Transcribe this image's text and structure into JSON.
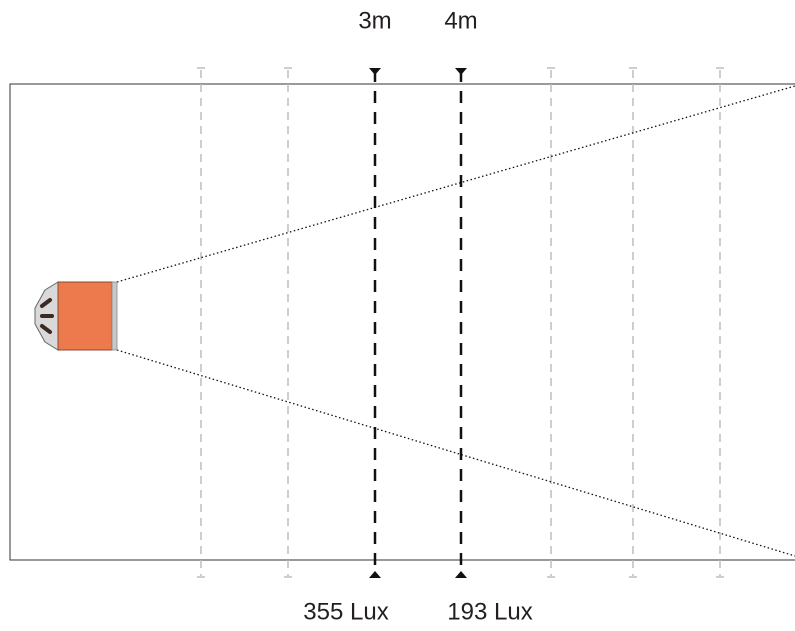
{
  "markers": [
    {
      "distance": "3m",
      "illuminance": "355 Lux"
    },
    {
      "distance": "4m",
      "illuminance": "193 Lux"
    }
  ]
}
